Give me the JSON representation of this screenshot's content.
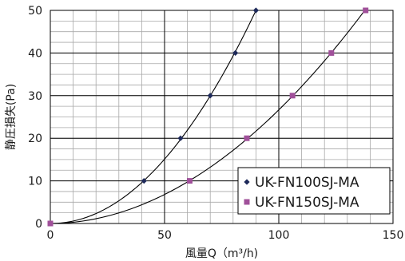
{
  "chart_data": {
    "type": "scatter",
    "xlabel": "風量Q（m³/h)",
    "ylabel": "静圧損失(Pa)",
    "xlim": [
      0,
      150
    ],
    "ylim": [
      0,
      50
    ],
    "x_ticks": [
      0,
      50,
      100,
      150
    ],
    "y_ticks": [
      0,
      10,
      20,
      30,
      40,
      50
    ],
    "x_minor_step": 10,
    "y_minor_step": 2.5,
    "grid": true,
    "legend_position": "bottom-right",
    "series": [
      {
        "name": "UK-FN100SJ-MA",
        "marker": "diamond",
        "color": "#1e2a5a",
        "x": [
          0,
          41,
          57,
          70,
          81,
          90
        ],
        "y": [
          0,
          10,
          20,
          30,
          40,
          50
        ]
      },
      {
        "name": "UK-FN150SJ-MA",
        "marker": "square",
        "color": "#a0509a",
        "x": [
          0,
          61,
          86,
          106,
          123,
          138
        ],
        "y": [
          0,
          10,
          20,
          30,
          40,
          50
        ]
      }
    ]
  }
}
